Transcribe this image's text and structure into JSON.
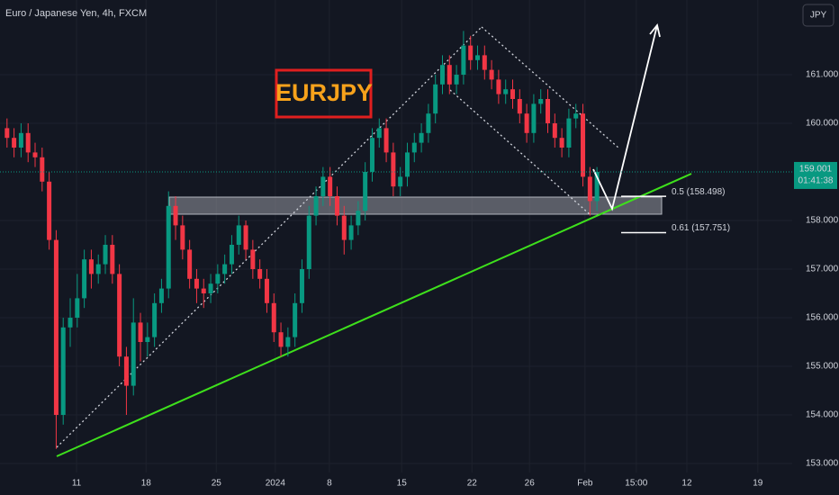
{
  "chart_data": {
    "type": "candlestick",
    "title": "Euro / Japanese Yen, 4h, FXCM",
    "currency": "JPY",
    "annotation": "EURJPY",
    "x": [
      1,
      2,
      3,
      4,
      5,
      6,
      7,
      8,
      9,
      10,
      11,
      12,
      13,
      14,
      15,
      16,
      17,
      18,
      19,
      20,
      21,
      22,
      23,
      24,
      25,
      26,
      27,
      28,
      29,
      30,
      31,
      32,
      33,
      34,
      35,
      36,
      37,
      38,
      39,
      40,
      41,
      42,
      43,
      44,
      45,
      46,
      47,
      48,
      49,
      50,
      51,
      52,
      53,
      54,
      55,
      56,
      57,
      58,
      59,
      60,
      61,
      62,
      63,
      64,
      65,
      66,
      67,
      68,
      69,
      70,
      71,
      72,
      73,
      74,
      75,
      76,
      77,
      78,
      79,
      80,
      81,
      82,
      83,
      84,
      85
    ],
    "open": [
      159.9,
      159.7,
      159.5,
      159.8,
      159.4,
      159.3,
      158.8,
      157.6,
      154.0,
      155.8,
      156.0,
      156.4,
      157.2,
      156.9,
      157.1,
      157.5,
      156.9,
      155.2,
      154.6,
      155.9,
      155.5,
      155.6,
      156.3,
      156.6,
      158.3,
      157.9,
      157.4,
      156.8,
      156.6,
      156.5,
      156.7,
      156.9,
      157.1,
      157.5,
      157.9,
      157.4,
      157.0,
      156.8,
      156.3,
      155.7,
      155.4,
      155.6,
      156.3,
      157.0,
      158.1,
      158.5,
      158.9,
      158.5,
      158.1,
      157.6,
      157.9,
      158.2,
      159.0,
      159.7,
      159.9,
      159.4,
      158.7,
      158.9,
      159.4,
      159.6,
      159.8,
      160.2,
      160.8,
      161.2,
      160.8,
      161.0,
      161.6,
      161.3,
      161.4,
      161.1,
      160.9,
      160.6,
      160.7,
      160.5,
      160.2,
      159.8,
      160.4,
      160.5,
      160.0,
      159.7,
      159.5,
      160.1,
      160.2,
      158.9,
      158.4
    ],
    "high": [
      160.1,
      159.9,
      160.0,
      160.0,
      159.6,
      159.5,
      159.0,
      157.8,
      156.0,
      156.4,
      156.9,
      157.4,
      157.4,
      157.3,
      157.7,
      157.7,
      157.1,
      155.4,
      156.4,
      156.1,
      155.9,
      156.5,
      156.8,
      158.6,
      158.5,
      158.1,
      157.6,
      157.0,
      156.8,
      156.9,
      157.1,
      157.3,
      157.7,
      158.1,
      158.0,
      157.6,
      157.2,
      157.0,
      156.5,
      155.9,
      155.8,
      156.5,
      157.2,
      158.3,
      158.7,
      159.1,
      159.1,
      158.7,
      158.3,
      158.1,
      158.4,
      159.2,
      159.9,
      160.1,
      160.1,
      159.6,
      159.1,
      159.6,
      159.8,
      160.0,
      160.4,
      161.0,
      161.4,
      161.4,
      161.2,
      161.9,
      161.8,
      161.6,
      161.6,
      161.3,
      161.1,
      160.9,
      160.9,
      160.7,
      160.4,
      160.6,
      160.7,
      160.7,
      160.2,
      159.9,
      160.3,
      160.4,
      160.4,
      159.1,
      159.1
    ],
    "low": [
      159.5,
      159.3,
      159.3,
      159.2,
      159.1,
      158.6,
      157.4,
      153.3,
      153.8,
      155.4,
      155.8,
      156.2,
      156.6,
      156.7,
      156.9,
      156.7,
      155.0,
      154.0,
      154.4,
      155.1,
      155.2,
      155.4,
      156.1,
      156.4,
      157.6,
      157.2,
      156.6,
      156.3,
      156.2,
      156.3,
      156.5,
      156.7,
      156.9,
      157.3,
      157.2,
      156.8,
      156.6,
      156.1,
      155.5,
      155.2,
      155.2,
      155.4,
      156.1,
      156.8,
      157.9,
      158.3,
      158.3,
      157.9,
      157.3,
      157.4,
      157.7,
      158.0,
      158.8,
      159.5,
      159.2,
      158.5,
      158.5,
      158.7,
      159.2,
      159.4,
      159.6,
      160.0,
      160.6,
      160.6,
      160.6,
      160.8,
      161.1,
      161.1,
      160.9,
      160.7,
      160.4,
      160.4,
      160.3,
      160.0,
      159.6,
      159.6,
      160.2,
      159.8,
      159.5,
      159.3,
      159.3,
      159.9,
      158.7,
      158.1,
      158.2
    ],
    "close": [
      159.7,
      159.5,
      159.8,
      159.4,
      159.3,
      158.8,
      157.6,
      154.0,
      155.8,
      156.0,
      156.4,
      157.2,
      156.9,
      157.1,
      157.5,
      156.9,
      155.2,
      154.6,
      155.9,
      155.5,
      155.6,
      156.3,
      156.6,
      158.3,
      157.9,
      157.4,
      156.8,
      156.6,
      156.5,
      156.7,
      156.9,
      157.1,
      157.5,
      157.9,
      157.4,
      157.0,
      156.8,
      156.3,
      155.7,
      155.4,
      155.6,
      156.3,
      157.0,
      158.1,
      158.5,
      158.9,
      158.5,
      158.1,
      157.6,
      157.9,
      158.2,
      159.0,
      159.7,
      159.9,
      159.4,
      158.7,
      158.9,
      159.4,
      159.6,
      159.8,
      160.2,
      160.8,
      161.2,
      160.8,
      161.0,
      161.6,
      161.3,
      161.4,
      161.1,
      160.9,
      160.6,
      160.7,
      160.5,
      160.2,
      159.8,
      160.4,
      160.5,
      160.0,
      159.7,
      159.5,
      160.1,
      160.2,
      158.9,
      158.4,
      159.001
    ],
    "up_color": "#089981",
    "down_color": "#f23645",
    "last_price": 159.001,
    "countdown": "01:41:38",
    "fib_levels": [
      {
        "value": 158.498,
        "label": "0.5 (158.498)"
      },
      {
        "value": 157.751,
        "label": "0.61 (157.751)"
      }
    ],
    "ylim": [
      152.815,
      162.537
    ],
    "yticks": [
      {
        "value": 153,
        "label": "153.000"
      },
      {
        "value": 154,
        "label": "154.000"
      },
      {
        "value": 155,
        "label": "155.000"
      },
      {
        "value": 156,
        "label": "156.000"
      },
      {
        "value": 157,
        "label": "157.000"
      },
      {
        "value": 158,
        "label": "158.000"
      },
      {
        "value": 160,
        "label": "160.000"
      },
      {
        "value": 161,
        "label": "161.000"
      }
    ],
    "xlim": [
      0,
      112.8
    ],
    "xticks": [
      {
        "value": 10.9,
        "label": "11"
      },
      {
        "value": 20.8,
        "label": "18"
      },
      {
        "value": 30.8,
        "label": "25"
      },
      {
        "value": 39.2,
        "label": "2024"
      },
      {
        "value": 46.9,
        "label": "8"
      },
      {
        "value": 57.2,
        "label": "15"
      },
      {
        "value": 67.2,
        "label": "22"
      },
      {
        "value": 75.4,
        "label": "26"
      },
      {
        "value": 83.3,
        "label": "Feb"
      },
      {
        "value": 90.6,
        "label": "15:00"
      },
      {
        "value": 97.8,
        "label": "12"
      },
      {
        "value": 107.9,
        "label": "19"
      }
    ],
    "grid": true
  }
}
